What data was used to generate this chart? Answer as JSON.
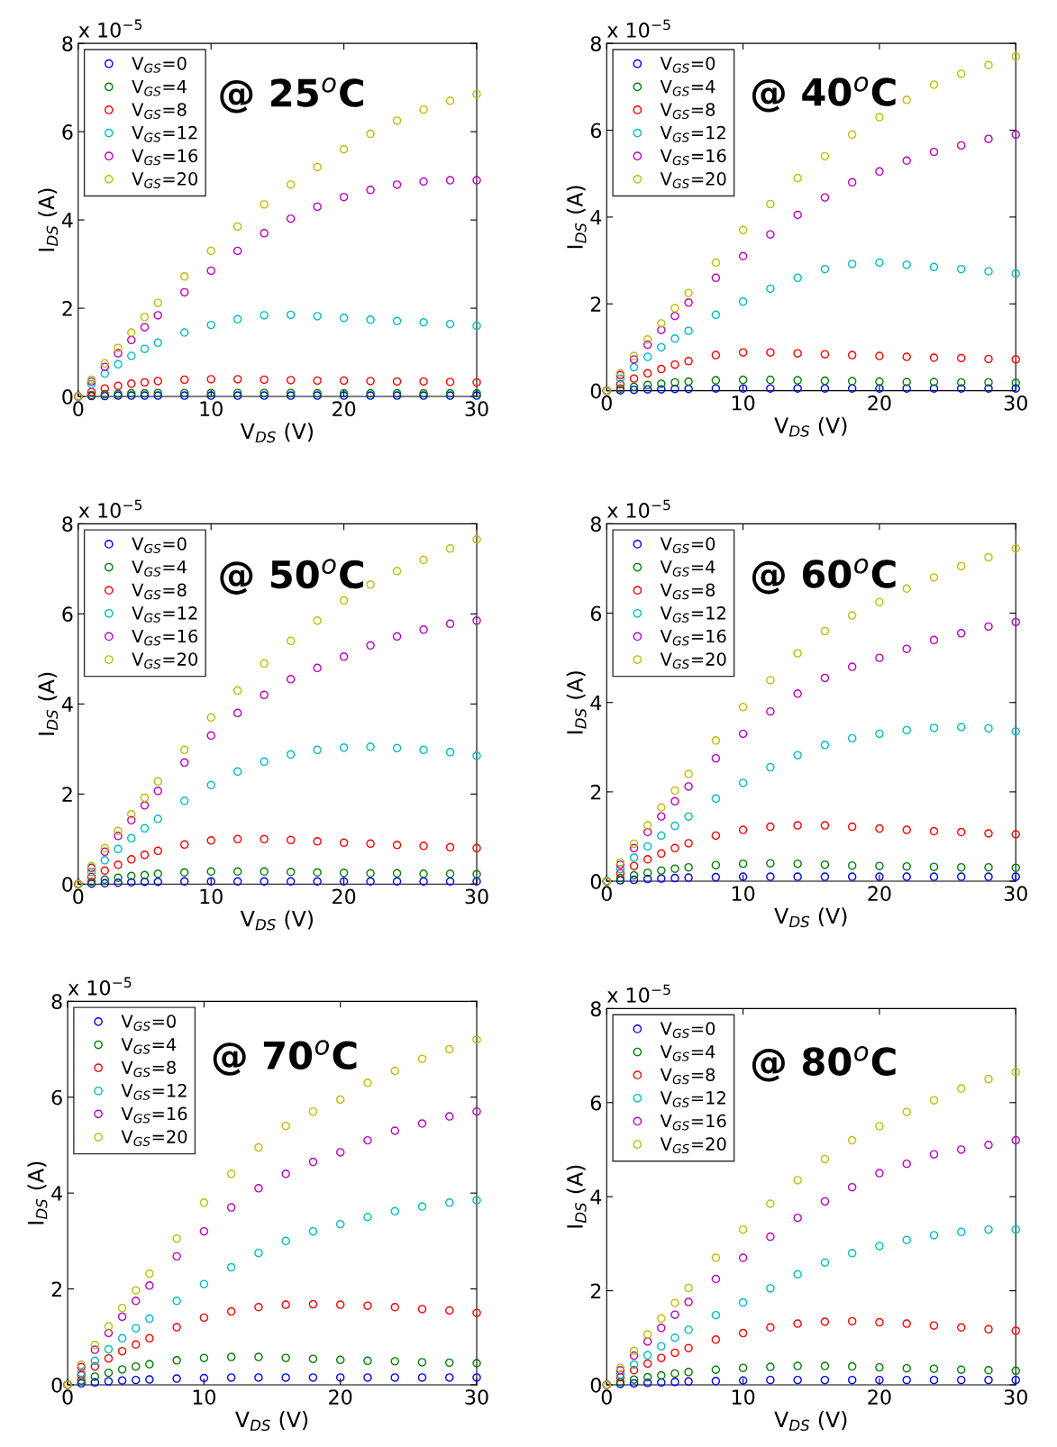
{
  "chart_data": [
    {
      "type": "scatter",
      "xlabel": "V$_{DS}$ (V)",
      "ylabel": "I$_{DS}$ (A)",
      "annotations": [
        "x 10$^{−5}$",
        "@ 25$^{o}$C"
      ],
      "xlim": [
        0,
        30
      ],
      "xticks": [
        0,
        10,
        20,
        30
      ],
      "ylim": [
        0,
        8
      ],
      "yticks": [
        0,
        2,
        4,
        6,
        8
      ],
      "grid": false,
      "legend": "top left",
      "marker": "circle",
      "x": [
        0,
        1,
        2,
        3,
        4,
        5,
        6,
        8,
        10,
        12,
        14,
        16,
        18,
        20,
        22,
        24,
        26,
        28,
        30
      ],
      "series": [
        {
          "name": "V$_{GS}$=0",
          "color": "#0000ff",
          "values": [
            null,
            0.01,
            0.01,
            0.02,
            0.02,
            0.02,
            0.02,
            0.02,
            0.02,
            0.02,
            0.02,
            0.02,
            0.02,
            0.02,
            0.02,
            0.02,
            0.02,
            0.02,
            0.02
          ]
        },
        {
          "name": "V$_{GS}$=4",
          "color": "#008000",
          "values": [
            0,
            0.03,
            0.05,
            0.06,
            0.07,
            0.07,
            0.08,
            0.08,
            0.08,
            0.08,
            0.08,
            0.08,
            0.07,
            0.07,
            0.07,
            0.07,
            0.07,
            0.07,
            0.07
          ]
        },
        {
          "name": "V$_{GS}$=8",
          "color": "#ff0000",
          "values": [
            0,
            0.1,
            0.18,
            0.24,
            0.29,
            0.32,
            0.35,
            0.38,
            0.39,
            0.39,
            0.38,
            0.37,
            0.36,
            0.36,
            0.35,
            0.34,
            0.34,
            0.33,
            0.32
          ]
        },
        {
          "name": "V$_{GS}$=12",
          "color": "#00bfbf",
          "values": [
            0,
            0.28,
            0.52,
            0.73,
            0.92,
            1.08,
            1.22,
            1.45,
            1.62,
            1.75,
            1.84,
            1.85,
            1.82,
            1.78,
            1.74,
            1.71,
            1.68,
            1.64,
            1.6
          ]
        },
        {
          "name": "V$_{GS}$=16",
          "color": "#bf00bf",
          "values": [
            0,
            0.34,
            0.67,
            0.98,
            1.28,
            1.57,
            1.84,
            2.36,
            2.85,
            3.3,
            3.7,
            4.03,
            4.3,
            4.52,
            4.68,
            4.8,
            4.87,
            4.9,
            4.9
          ]
        },
        {
          "name": "V$_{GS}$=20",
          "color": "#bfbf00",
          "values": [
            0,
            0.38,
            0.75,
            1.1,
            1.45,
            1.8,
            2.12,
            2.72,
            3.3,
            3.85,
            4.35,
            4.8,
            5.2,
            5.6,
            5.95,
            6.25,
            6.5,
            6.7,
            6.85
          ]
        }
      ]
    },
    {
      "type": "scatter",
      "xlabel": "V$_{DS}$ (V)",
      "ylabel": "I$_{DS}$ (A)",
      "annotations": [
        "x 10$^{−5}$",
        "@ 40$^{o}$C"
      ],
      "xlim": [
        0,
        30
      ],
      "xticks": [
        0,
        10,
        20,
        30
      ],
      "ylim": [
        0,
        8
      ],
      "yticks": [
        0,
        2,
        4,
        6,
        8
      ],
      "grid": false,
      "legend": "top left",
      "marker": "circle",
      "x": [
        0,
        1,
        2,
        3,
        4,
        5,
        6,
        8,
        10,
        12,
        14,
        16,
        18,
        20,
        22,
        24,
        26,
        28,
        30
      ],
      "series": [
        {
          "name": "V$_{GS}$=0",
          "color": "#0000ff",
          "values": [
            null,
            0.01,
            0.02,
            0.03,
            0.03,
            0.04,
            0.04,
            0.05,
            0.05,
            0.05,
            0.05,
            0.05,
            0.05,
            0.05,
            0.05,
            0.05,
            0.05,
            0.05,
            0.05
          ]
        },
        {
          "name": "V$_{GS}$=4",
          "color": "#008000",
          "values": [
            0,
            0.05,
            0.09,
            0.13,
            0.16,
            0.19,
            0.21,
            0.24,
            0.25,
            0.25,
            0.24,
            0.23,
            0.22,
            0.21,
            0.2,
            0.2,
            0.19,
            0.19,
            0.18
          ]
        },
        {
          "name": "V$_{GS}$=8",
          "color": "#ff0000",
          "values": [
            0,
            0.15,
            0.28,
            0.4,
            0.5,
            0.6,
            0.68,
            0.82,
            0.88,
            0.88,
            0.86,
            0.84,
            0.82,
            0.8,
            0.78,
            0.76,
            0.75,
            0.73,
            0.72
          ]
        },
        {
          "name": "V$_{GS}$=12",
          "color": "#00bfbf",
          "values": [
            0,
            0.28,
            0.54,
            0.78,
            1.0,
            1.2,
            1.38,
            1.75,
            2.05,
            2.35,
            2.6,
            2.8,
            2.92,
            2.95,
            2.9,
            2.85,
            2.8,
            2.75,
            2.7
          ]
        },
        {
          "name": "V$_{GS}$=16",
          "color": "#bf00bf",
          "values": [
            0,
            0.36,
            0.72,
            1.06,
            1.4,
            1.72,
            2.03,
            2.6,
            3.1,
            3.6,
            4.05,
            4.45,
            4.8,
            5.05,
            5.3,
            5.5,
            5.65,
            5.8,
            5.9
          ]
        },
        {
          "name": "V$_{GS}$=20",
          "color": "#bfbf00",
          "values": [
            0,
            0.4,
            0.8,
            1.18,
            1.55,
            1.9,
            2.25,
            2.95,
            3.7,
            4.3,
            4.9,
            5.4,
            5.9,
            6.3,
            6.7,
            7.05,
            7.3,
            7.5,
            7.7
          ]
        }
      ]
    },
    {
      "type": "scatter",
      "xlabel": "V$_{DS}$ (V)",
      "ylabel": "I$_{DS}$ (A)",
      "annotations": [
        "x 10$^{−5}$",
        "@ 50$^{o}$C"
      ],
      "xlim": [
        0,
        30
      ],
      "xticks": [
        0,
        10,
        20,
        30
      ],
      "ylim": [
        0,
        8
      ],
      "yticks": [
        0,
        2,
        4,
        6,
        8
      ],
      "grid": false,
      "legend": "top left",
      "marker": "circle",
      "x": [
        0,
        1,
        2,
        3,
        4,
        5,
        6,
        8,
        10,
        12,
        14,
        16,
        18,
        20,
        22,
        24,
        26,
        28,
        30
      ],
      "series": [
        {
          "name": "V$_{GS}$=0",
          "color": "#0000ff",
          "values": [
            null,
            0.01,
            0.02,
            0.03,
            0.04,
            0.05,
            0.05,
            0.06,
            0.06,
            0.06,
            0.06,
            0.06,
            0.06,
            0.06,
            0.06,
            0.06,
            0.06,
            0.06,
            0.06
          ]
        },
        {
          "name": "V$_{GS}$=4",
          "color": "#008000",
          "values": [
            0,
            0.05,
            0.1,
            0.14,
            0.18,
            0.2,
            0.23,
            0.26,
            0.28,
            0.28,
            0.28,
            0.27,
            0.26,
            0.25,
            0.24,
            0.24,
            0.23,
            0.23,
            0.22
          ]
        },
        {
          "name": "V$_{GS}$=8",
          "color": "#ff0000",
          "values": [
            0,
            0.16,
            0.3,
            0.43,
            0.55,
            0.65,
            0.74,
            0.88,
            0.97,
            1.0,
            1.0,
            0.98,
            0.95,
            0.92,
            0.9,
            0.87,
            0.85,
            0.82,
            0.8
          ]
        },
        {
          "name": "V$_{GS}$=12",
          "color": "#00bfbf",
          "values": [
            0,
            0.27,
            0.53,
            0.78,
            1.02,
            1.24,
            1.45,
            1.85,
            2.2,
            2.5,
            2.72,
            2.88,
            2.98,
            3.03,
            3.05,
            3.02,
            2.98,
            2.93,
            2.85
          ]
        },
        {
          "name": "V$_{GS}$=16",
          "color": "#bf00bf",
          "values": [
            0,
            0.36,
            0.72,
            1.07,
            1.42,
            1.75,
            2.07,
            2.7,
            3.3,
            3.8,
            4.2,
            4.55,
            4.8,
            5.05,
            5.3,
            5.5,
            5.65,
            5.78,
            5.85
          ]
        },
        {
          "name": "V$_{GS}$=20",
          "color": "#bfbf00",
          "values": [
            0,
            0.4,
            0.8,
            1.18,
            1.55,
            1.92,
            2.28,
            2.98,
            3.7,
            4.3,
            4.9,
            5.4,
            5.85,
            6.3,
            6.65,
            6.95,
            7.2,
            7.45,
            7.65
          ]
        }
      ]
    },
    {
      "type": "scatter",
      "xlabel": "V$_{DS}$ (V)",
      "ylabel": "I$_{DS}$ (A)",
      "annotations": [
        "x 10$^{−5}$",
        "@ 60$^{o}$C"
      ],
      "xlim": [
        0,
        30
      ],
      "xticks": [
        0,
        10,
        20,
        30
      ],
      "ylim": [
        0,
        8
      ],
      "yticks": [
        0,
        2,
        4,
        6,
        8
      ],
      "grid": false,
      "legend": "top left",
      "marker": "circle",
      "x": [
        0,
        1,
        2,
        3,
        4,
        5,
        6,
        8,
        10,
        12,
        14,
        16,
        18,
        20,
        22,
        24,
        26,
        28,
        30
      ],
      "series": [
        {
          "name": "V$_{GS}$=0",
          "color": "#0000ff",
          "values": [
            null,
            0.02,
            0.03,
            0.05,
            0.06,
            0.07,
            0.08,
            0.09,
            0.1,
            0.1,
            0.1,
            0.1,
            0.1,
            0.1,
            0.1,
            0.1,
            0.1,
            0.1,
            0.1
          ]
        },
        {
          "name": "V$_{GS}$=4",
          "color": "#008000",
          "values": [
            0,
            0.07,
            0.13,
            0.19,
            0.24,
            0.28,
            0.31,
            0.36,
            0.39,
            0.4,
            0.39,
            0.37,
            0.35,
            0.34,
            0.33,
            0.32,
            0.31,
            0.31,
            0.3
          ]
        },
        {
          "name": "V$_{GS}$=8",
          "color": "#ff0000",
          "values": [
            0,
            0.18,
            0.34,
            0.49,
            0.62,
            0.74,
            0.85,
            1.02,
            1.15,
            1.22,
            1.25,
            1.25,
            1.22,
            1.18,
            1.15,
            1.12,
            1.1,
            1.07,
            1.05
          ]
        },
        {
          "name": "V$_{GS}$=12",
          "color": "#00bfbf",
          "values": [
            0,
            0.27,
            0.53,
            0.78,
            1.02,
            1.24,
            1.45,
            1.85,
            2.2,
            2.55,
            2.82,
            3.05,
            3.2,
            3.3,
            3.38,
            3.43,
            3.45,
            3.42,
            3.35
          ]
        },
        {
          "name": "V$_{GS}$=16",
          "color": "#bf00bf",
          "values": [
            0,
            0.37,
            0.74,
            1.1,
            1.45,
            1.79,
            2.12,
            2.75,
            3.3,
            3.8,
            4.2,
            4.55,
            4.8,
            5.0,
            5.2,
            5.4,
            5.55,
            5.7,
            5.8
          ]
        },
        {
          "name": "V$_{GS}$=20",
          "color": "#bfbf00",
          "values": [
            0,
            0.42,
            0.84,
            1.25,
            1.65,
            2.03,
            2.4,
            3.15,
            3.9,
            4.5,
            5.1,
            5.6,
            5.95,
            6.25,
            6.55,
            6.8,
            7.05,
            7.25,
            7.45
          ]
        }
      ]
    },
    {
      "type": "scatter",
      "xlabel": "V$_{DS}$ (V)",
      "ylabel": "I$_{DS}$ (A)",
      "annotations": [
        "x 10$^{−5}$",
        "@ 70$^{o}$C"
      ],
      "xlim": [
        0,
        30
      ],
      "xticks": [
        0,
        10,
        20,
        30
      ],
      "ylim": [
        0,
        8
      ],
      "yticks": [
        0,
        2,
        4,
        6,
        8
      ],
      "grid": false,
      "legend": "top left",
      "marker": "circle",
      "x": [
        0,
        1,
        2,
        3,
        4,
        5,
        6,
        8,
        10,
        12,
        14,
        16,
        18,
        20,
        22,
        24,
        26,
        28,
        30
      ],
      "series": [
        {
          "name": "V$_{GS}$=0",
          "color": "#0000ff",
          "values": [
            null,
            0.03,
            0.05,
            0.07,
            0.09,
            0.1,
            0.11,
            0.13,
            0.14,
            0.15,
            0.15,
            0.15,
            0.15,
            0.15,
            0.15,
            0.15,
            0.15,
            0.15,
            0.15
          ]
        },
        {
          "name": "V$_{GS}$=4",
          "color": "#008000",
          "values": [
            0,
            0.09,
            0.17,
            0.25,
            0.32,
            0.38,
            0.43,
            0.51,
            0.56,
            0.58,
            0.58,
            0.56,
            0.54,
            0.52,
            0.5,
            0.49,
            0.47,
            0.46,
            0.45
          ]
        },
        {
          "name": "V$_{GS}$=8",
          "color": "#ff0000",
          "values": [
            0,
            0.2,
            0.38,
            0.55,
            0.7,
            0.84,
            0.97,
            1.2,
            1.4,
            1.53,
            1.62,
            1.67,
            1.68,
            1.67,
            1.65,
            1.62,
            1.58,
            1.55,
            1.5
          ]
        },
        {
          "name": "V$_{GS}$=12",
          "color": "#00bfbf",
          "values": [
            0,
            0.25,
            0.5,
            0.74,
            0.97,
            1.18,
            1.38,
            1.75,
            2.1,
            2.45,
            2.75,
            3.0,
            3.2,
            3.35,
            3.5,
            3.62,
            3.72,
            3.8,
            3.85
          ]
        },
        {
          "name": "V$_{GS}$=16",
          "color": "#bf00bf",
          "values": [
            0,
            0.37,
            0.73,
            1.08,
            1.42,
            1.75,
            2.07,
            2.68,
            3.2,
            3.7,
            4.1,
            4.4,
            4.65,
            4.85,
            5.1,
            5.3,
            5.45,
            5.6,
            5.7
          ]
        },
        {
          "name": "V$_{GS}$=20",
          "color": "#bfbf00",
          "values": [
            0,
            0.42,
            0.83,
            1.22,
            1.6,
            1.97,
            2.32,
            3.05,
            3.8,
            4.4,
            4.95,
            5.4,
            5.7,
            5.95,
            6.3,
            6.55,
            6.8,
            7.0,
            7.2
          ]
        }
      ]
    },
    {
      "type": "scatter",
      "xlabel": "V$_{DS}$ (V)",
      "ylabel": "I$_{DS}$ (A)",
      "annotations": [
        "x 10$^{−5}$",
        "@ 80$^{o}$C"
      ],
      "xlim": [
        0,
        30
      ],
      "xticks": [
        0,
        10,
        20,
        30
      ],
      "ylim": [
        0,
        8
      ],
      "yticks": [
        0,
        2,
        4,
        6,
        8
      ],
      "grid": false,
      "legend": "top left",
      "marker": "circle",
      "x": [
        0,
        1,
        2,
        3,
        4,
        5,
        6,
        8,
        10,
        12,
        14,
        16,
        18,
        20,
        22,
        24,
        26,
        28,
        30
      ],
      "series": [
        {
          "name": "V$_{GS}$=0",
          "color": "#0000ff",
          "values": [
            null,
            0.02,
            0.03,
            0.04,
            0.05,
            0.06,
            0.07,
            0.08,
            0.09,
            0.1,
            0.1,
            0.1,
            0.1,
            0.1,
            0.1,
            0.1,
            0.1,
            0.1,
            0.1
          ]
        },
        {
          "name": "V$_{GS}$=4",
          "color": "#008000",
          "values": [
            0,
            0.06,
            0.11,
            0.16,
            0.2,
            0.24,
            0.27,
            0.32,
            0.36,
            0.38,
            0.4,
            0.4,
            0.39,
            0.37,
            0.35,
            0.34,
            0.32,
            0.31,
            0.3
          ]
        },
        {
          "name": "V$_{GS}$=8",
          "color": "#ff0000",
          "values": [
            0,
            0.16,
            0.31,
            0.45,
            0.57,
            0.68,
            0.78,
            0.96,
            1.1,
            1.22,
            1.3,
            1.34,
            1.35,
            1.33,
            1.3,
            1.26,
            1.22,
            1.18,
            1.15
          ]
        },
        {
          "name": "V$_{GS}$=12",
          "color": "#00bfbf",
          "values": [
            0,
            0.22,
            0.43,
            0.63,
            0.82,
            1.0,
            1.17,
            1.48,
            1.75,
            2.05,
            2.35,
            2.6,
            2.8,
            2.95,
            3.08,
            3.18,
            3.25,
            3.3,
            3.3
          ]
        },
        {
          "name": "V$_{GS}$=16",
          "color": "#bf00bf",
          "values": [
            0,
            0.31,
            0.62,
            0.92,
            1.21,
            1.49,
            1.76,
            2.25,
            2.7,
            3.15,
            3.55,
            3.9,
            4.2,
            4.5,
            4.7,
            4.9,
            5.0,
            5.1,
            5.2
          ]
        },
        {
          "name": "V$_{GS}$=20",
          "color": "#bfbf00",
          "values": [
            0,
            0.36,
            0.72,
            1.07,
            1.41,
            1.74,
            2.06,
            2.7,
            3.3,
            3.85,
            4.35,
            4.8,
            5.2,
            5.5,
            5.8,
            6.05,
            6.3,
            6.5,
            6.65
          ]
        }
      ]
    }
  ]
}
